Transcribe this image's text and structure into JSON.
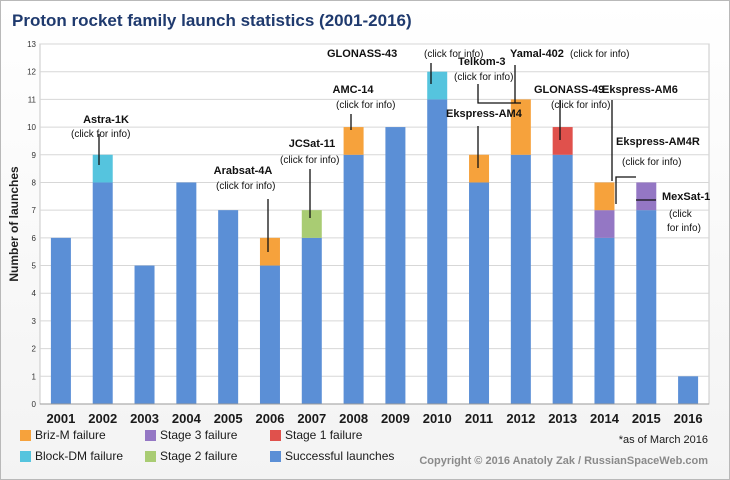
{
  "chart_data": {
    "type": "bar",
    "stacked": true,
    "title": "Proton rocket family launch statistics (2001-2016)",
    "ylabel": "Number of launches",
    "xlabel": "",
    "ylim": [
      0,
      13
    ],
    "yticks": [
      "0",
      "1",
      "2",
      "3",
      "4",
      "5",
      "6",
      "7",
      "8",
      "9",
      "10",
      "11",
      "12",
      "13"
    ],
    "grid": true,
    "categories": [
      "2001",
      "2002",
      "2003",
      "2004",
      "2005",
      "2006",
      "2007",
      "2008",
      "2009",
      "2010",
      "2011",
      "2012",
      "2013",
      "2014",
      "2015",
      "2016"
    ],
    "series": [
      {
        "name": "Successful launches",
        "color": "#5b8fd6",
        "values": [
          6,
          8,
          5,
          8,
          7,
          5,
          6,
          9,
          10,
          11,
          8,
          9,
          9,
          6,
          7,
          1
        ]
      },
      {
        "name": "Stage 1 failure",
        "color": "#e0514c",
        "values": [
          0,
          0,
          0,
          0,
          0,
          0,
          0,
          0,
          0,
          0,
          0,
          0,
          1,
          0,
          0,
          0
        ]
      },
      {
        "name": "Stage 2 failure",
        "color": "#a9cc73",
        "values": [
          0,
          0,
          0,
          0,
          0,
          0,
          1,
          0,
          0,
          0,
          0,
          0,
          0,
          0,
          0,
          0
        ]
      },
      {
        "name": "Stage 3 failure",
        "color": "#9477c4",
        "values": [
          0,
          0,
          0,
          0,
          0,
          0,
          0,
          0,
          0,
          0,
          0,
          0,
          0,
          1,
          1,
          0
        ]
      },
      {
        "name": "Briz-M failure",
        "color": "#f6a23c",
        "values": [
          0,
          0,
          0,
          0,
          0,
          1,
          0,
          1,
          0,
          0,
          1,
          2,
          0,
          1,
          0,
          0
        ]
      },
      {
        "name": "Block-DM failure",
        "color": "#55c4de",
        "values": [
          0,
          1,
          0,
          0,
          0,
          0,
          0,
          0,
          0,
          1,
          0,
          0,
          0,
          0,
          0,
          0
        ]
      }
    ],
    "legend_placement": "bottom-left",
    "annotations": [
      {
        "name": "Astra-1K",
        "note": "(click for info)"
      },
      {
        "name": "Arabsat-4A",
        "note": "(click for info)"
      },
      {
        "name": "JCSat-11",
        "note": "(click for info)"
      },
      {
        "name": "AMC-14",
        "note": "(click for info)"
      },
      {
        "name": "GLONASS-43",
        "note": "(click for info)"
      },
      {
        "name": "Ekspress-AM4",
        "note": ""
      },
      {
        "name": "Telkom-3",
        "note": "(click for info)"
      },
      {
        "name": "Yamal-402",
        "note": "(click for info)"
      },
      {
        "name": "GLONASS-49",
        "note": "(click for info)"
      },
      {
        "name": "Ekspress-AM6",
        "note": ""
      },
      {
        "name": "Ekspress-AM4R",
        "note": "(click for info)"
      },
      {
        "name": "MexSat-1",
        "note": "(click for info)"
      }
    ],
    "footnote": "*as of March 2016",
    "copyright": "Copyright © 2016 Anatoly Zak / RussianSpaceWeb.com"
  }
}
